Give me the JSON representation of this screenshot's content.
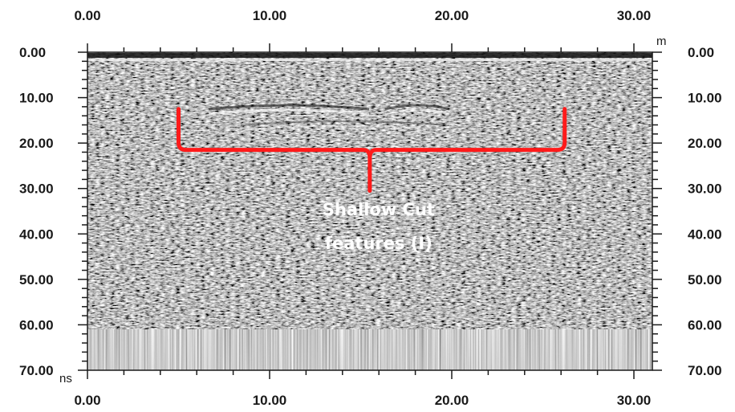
{
  "chart_data": {
    "type": "heatmap",
    "title": "",
    "x_axis": {
      "unit": "m",
      "range": [
        0,
        31
      ],
      "major_ticks": [
        0,
        10,
        20,
        30
      ],
      "tick_labels": [
        "0.00",
        "10.00",
        "20.00",
        "30.00"
      ],
      "minor_step": 2,
      "position": "top and bottom"
    },
    "y_axis": {
      "unit": "ns",
      "range": [
        0,
        70
      ],
      "major_ticks": [
        0,
        10,
        20,
        30,
        40,
        50,
        60,
        70
      ],
      "tick_labels": [
        "0.00",
        "10.00",
        "20.00",
        "30.00",
        "40.00",
        "50.00",
        "60.00",
        "70.00"
      ],
      "inverted": true,
      "minor_step": 2,
      "position": "left and right"
    },
    "signal_end_ns": 61,
    "colormap": "grayscale",
    "annotation": {
      "lines": [
        "Shallow Cut",
        "features (I)"
      ],
      "color": "#ff1a1a",
      "text_color": "#ffffff",
      "bracket_x_range_m": [
        5,
        26.2
      ],
      "bracket_top_ns": 12.5,
      "bracket_base_ns": 21.5,
      "bracket_point_ns": 30.5,
      "bracket_point_x_m": 15.5
    }
  }
}
